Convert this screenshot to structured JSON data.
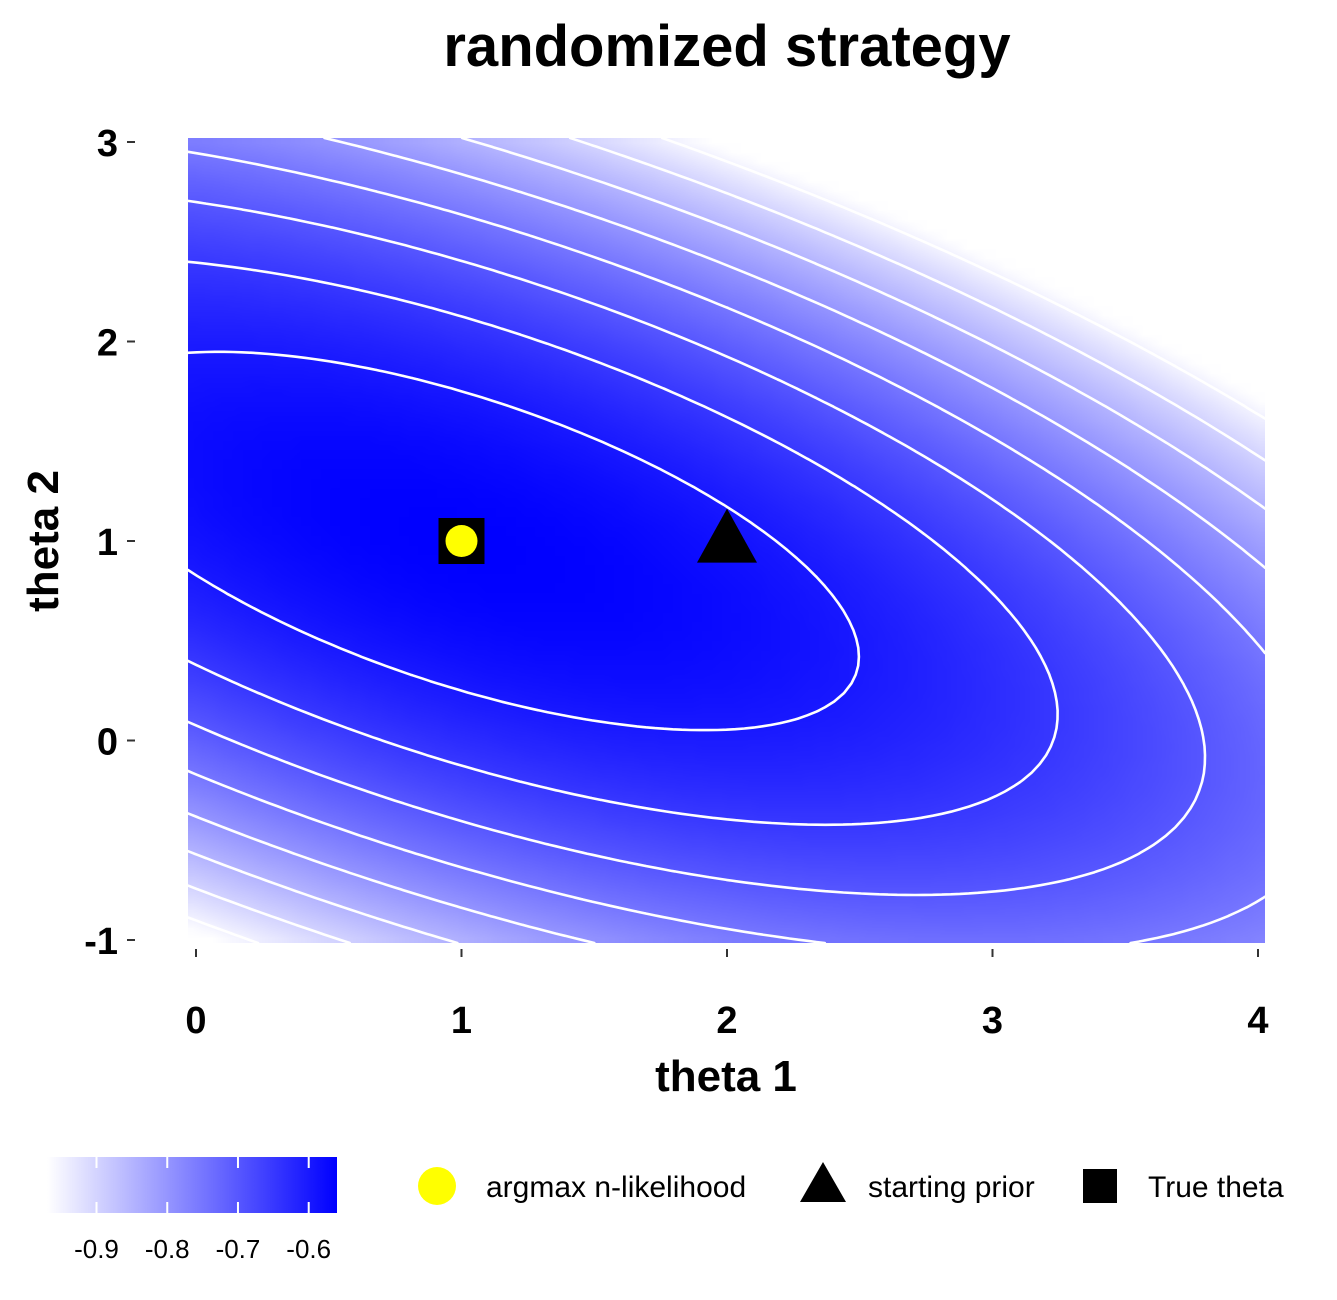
{
  "chart_data": {
    "type": "heatmap",
    "title": "randomized strategy",
    "xlabel": "theta 1",
    "ylabel": "theta 2",
    "xlim": [
      0,
      4
    ],
    "ylim": [
      -1,
      3
    ],
    "x_ticks": [
      "0",
      "1",
      "2",
      "3",
      "4"
    ],
    "y_ticks": [
      "-1",
      "0",
      "1",
      "2",
      "3"
    ],
    "x_tick_values": [
      0,
      1,
      2,
      3,
      4
    ],
    "y_tick_values": [
      -1,
      0,
      1,
      2,
      3
    ],
    "fill_min": -0.97,
    "fill_max": -0.56,
    "contour_levels": [
      -0.6,
      -0.65,
      -0.7,
      -0.75,
      -0.8,
      -0.85,
      -0.9,
      -0.95
    ],
    "colors": {
      "low": "#ffffff",
      "high": "#0000ff",
      "contour": "#ffffff"
    },
    "points": [
      {
        "label": "True theta",
        "x": 1,
        "y": 1,
        "shape": "square",
        "color": "#000000"
      },
      {
        "label": "starting prior",
        "x": 2,
        "y": 1,
        "shape": "triangle",
        "color": "#000000"
      },
      {
        "label": "argmax n-likelihood",
        "x": 1,
        "y": 1,
        "shape": "circle",
        "color": "#ffff00"
      }
    ],
    "legend": {
      "placement": "bottom",
      "items": [
        {
          "label": "argmax n-likelihood",
          "shape": "circle",
          "color": "#ffff00"
        },
        {
          "label": "starting prior",
          "shape": "triangle",
          "color": "#000000"
        },
        {
          "label": "True theta",
          "shape": "square",
          "color": "#000000"
        }
      ]
    },
    "colorbar": {
      "ticks": [
        "-0.9",
        "-0.8",
        "-0.7",
        "-0.6"
      ],
      "tick_values": [
        -0.9,
        -0.8,
        -0.7,
        -0.6
      ]
    },
    "grid": false
  }
}
